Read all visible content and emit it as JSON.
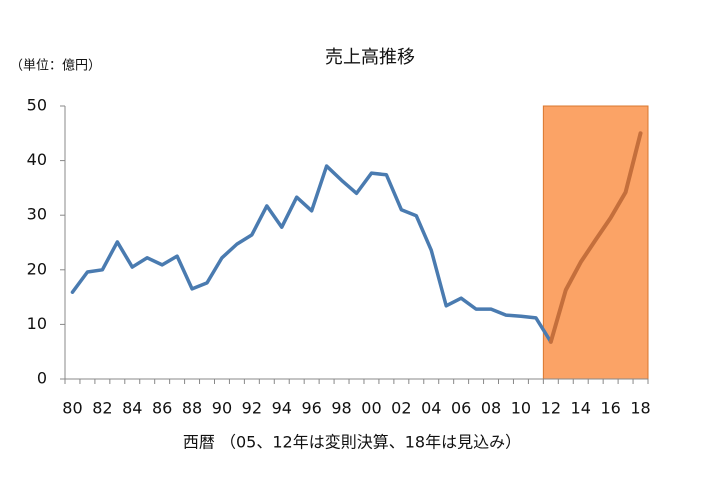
{
  "chart_data": {
    "type": "line",
    "title": "売上高推移",
    "y_label": "（単位：億円）",
    "x_label": "西暦 （05、12年は変則決算、18年は見込み）",
    "categories": [
      "80",
      null,
      "82",
      null,
      "84",
      null,
      "86",
      null,
      "88",
      null,
      "90",
      null,
      "92",
      null,
      "94",
      null,
      "96",
      null,
      "98",
      null,
      "00",
      null,
      "02",
      null,
      "04",
      null,
      "06",
      null,
      "08",
      null,
      "10",
      null,
      "12",
      null,
      "14",
      null,
      "16",
      null,
      "18"
    ],
    "series": [
      {
        "color": "#4a7bb0",
        "values": [
          15.9,
          19.6,
          20,
          25.1,
          20.5,
          22.2,
          20.9,
          22.5,
          16.5,
          17.6,
          22.2,
          24.7,
          26.4,
          31.7,
          27.8,
          33.3,
          30.8,
          39,
          36.4,
          34,
          37.7,
          37.4,
          31,
          29.9,
          23.6,
          13.4,
          14.8,
          12.8,
          12.8,
          11.7,
          11.5,
          11.2,
          6.8,
          null,
          null,
          null,
          null,
          null,
          null
        ]
      },
      {
        "color": "#c46f3c",
        "values": [
          null,
          null,
          null,
          null,
          null,
          null,
          null,
          null,
          null,
          null,
          null,
          null,
          null,
          null,
          null,
          null,
          null,
          null,
          null,
          null,
          null,
          null,
          null,
          null,
          null,
          null,
          null,
          null,
          null,
          null,
          null,
          null,
          6.8,
          16.3,
          21.4,
          25.5,
          29.5,
          34.2,
          45
        ]
      }
    ],
    "highlight": {
      "from": "12",
      "to": "18",
      "color": "#fba366"
    },
    "ylim": [
      0,
      50
    ],
    "yticks": [
      0,
      10,
      20,
      30,
      40,
      50
    ],
    "grid": false
  }
}
